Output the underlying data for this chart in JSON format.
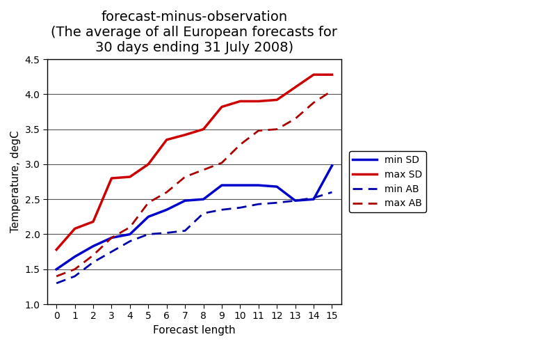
{
  "title_line1": "forecast-minus-observation",
  "title_line2": "(The average of all European forecasts for",
  "title_line3": "30 days ending 31 July 2008)",
  "xlabel": "Forecast length",
  "ylabel": "Temperature, degC",
  "x": [
    0,
    1,
    2,
    3,
    4,
    5,
    6,
    7,
    8,
    9,
    10,
    11,
    12,
    13,
    14,
    15
  ],
  "min_SD": [
    1.5,
    1.68,
    1.83,
    1.95,
    2.0,
    2.25,
    2.35,
    2.48,
    2.5,
    2.7,
    2.7,
    2.7,
    2.68,
    2.48,
    2.5,
    2.98
  ],
  "max_SD": [
    1.78,
    2.08,
    2.18,
    2.8,
    2.82,
    3.0,
    3.35,
    3.42,
    3.5,
    3.82,
    3.9,
    3.9,
    3.92,
    4.1,
    4.28,
    4.28
  ],
  "min_AB": [
    1.3,
    1.4,
    1.6,
    1.75,
    1.9,
    2.0,
    2.02,
    2.05,
    2.3,
    2.35,
    2.38,
    2.43,
    2.45,
    2.48,
    2.52,
    2.6
  ],
  "max_AB": [
    1.4,
    1.5,
    1.7,
    1.95,
    2.1,
    2.45,
    2.6,
    2.82,
    2.92,
    3.02,
    3.28,
    3.48,
    3.5,
    3.65,
    3.88,
    4.05
  ],
  "min_SD_color": "#0000cc",
  "max_SD_color": "#cc0000",
  "min_AB_color": "#0000aa",
  "max_AB_color": "#aa0000",
  "ylim": [
    1.0,
    4.5
  ],
  "yticks": [
    1.0,
    1.5,
    2.0,
    2.5,
    3.0,
    3.5,
    4.0,
    4.5
  ],
  "xticks": [
    0,
    1,
    2,
    3,
    4,
    5,
    6,
    7,
    8,
    9,
    10,
    11,
    12,
    13,
    14,
    15
  ],
  "background_color": "#ffffff",
  "legend_labels": [
    "min SD",
    "max SD",
    "min AB",
    "max AB"
  ],
  "title_fontsize": 14,
  "axis_label_fontsize": 11,
  "tick_fontsize": 10,
  "legend_fontsize": 10
}
